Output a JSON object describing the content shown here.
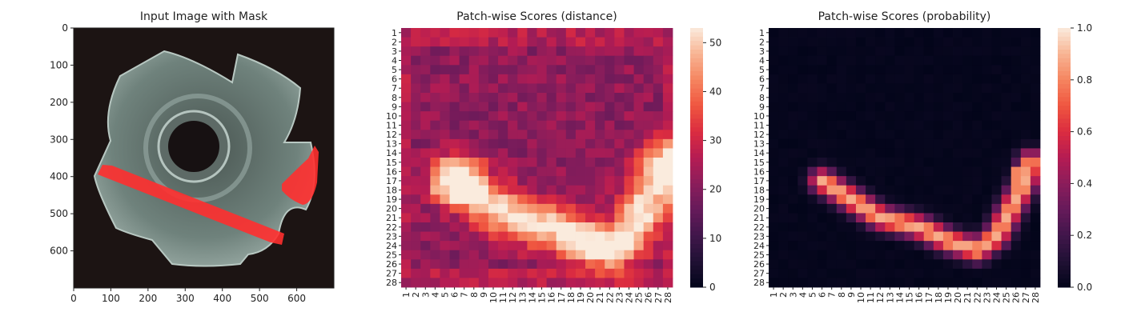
{
  "chart_data": [
    {
      "type": "image",
      "title": "Input Image with Mask",
      "xlim": [
        0,
        700
      ],
      "ylim": [
        700,
        0
      ],
      "xticks": [
        0,
        100,
        200,
        300,
        400,
        500,
        600
      ],
      "yticks": [
        0,
        100,
        200,
        300,
        400,
        500,
        600
      ],
      "mask_color": "#ff2f2f",
      "background_color": "#1c1413",
      "part_color": "#6f827c"
    },
    {
      "type": "heatmap",
      "title": "Patch-wise Scores (distance)",
      "xticks": [
        "1",
        "2",
        "3",
        "4",
        "5",
        "6",
        "7",
        "8",
        "9",
        "10",
        "11",
        "12",
        "13",
        "14",
        "15",
        "16",
        "17",
        "18",
        "19",
        "20",
        "21",
        "22",
        "23",
        "24",
        "25",
        "26",
        "27",
        "28"
      ],
      "yticks": [
        "1",
        "2",
        "3",
        "4",
        "5",
        "6",
        "7",
        "8",
        "9",
        "10",
        "11",
        "12",
        "13",
        "14",
        "15",
        "16",
        "17",
        "18",
        "19",
        "20",
        "21",
        "22",
        "23",
        "24",
        "25",
        "26",
        "27",
        "28"
      ],
      "colorbar": {
        "min": 0,
        "max": 53,
        "ticks": [
          0,
          10,
          20,
          30,
          40,
          50
        ]
      },
      "colormap": "rocket"
    },
    {
      "type": "heatmap",
      "title": "Patch-wise Scores (probability)",
      "xticks": [
        "1",
        "2",
        "3",
        "4",
        "5",
        "6",
        "7",
        "8",
        "9",
        "10",
        "11",
        "12",
        "13",
        "14",
        "15",
        "16",
        "17",
        "18",
        "19",
        "20",
        "21",
        "22",
        "23",
        "24",
        "25",
        "26",
        "27",
        "28"
      ],
      "yticks": [
        "1",
        "2",
        "3",
        "4",
        "5",
        "6",
        "7",
        "8",
        "9",
        "10",
        "11",
        "12",
        "13",
        "14",
        "15",
        "16",
        "17",
        "18",
        "19",
        "20",
        "21",
        "22",
        "23",
        "24",
        "25",
        "26",
        "27",
        "28"
      ],
      "colorbar": {
        "min": 0.0,
        "max": 1.0,
        "ticks": [
          "0.0",
          "0.2",
          "0.4",
          "0.6",
          "0.8",
          "1.0"
        ]
      },
      "colormap": "rocket"
    }
  ]
}
